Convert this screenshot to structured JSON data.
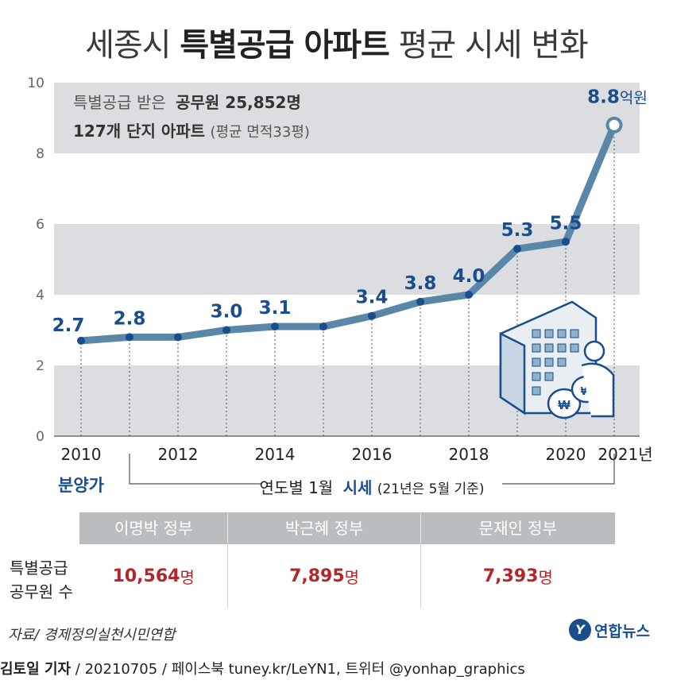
{
  "title": {
    "part1": "세종시",
    "part2": "특별공급 아파트",
    "part3": "평균 시세 변화"
  },
  "note": {
    "line1_pre": "특별공급 받은",
    "line1_bold": "공무원 25,852명",
    "line2_bold": "127개 단지 아파트",
    "line2_rest": "(평균 면적33평)"
  },
  "chart_data": {
    "type": "line",
    "title": "세종시 특별공급 아파트 평균 시세 변화",
    "xlabel": "",
    "ylabel": "",
    "ylim": [
      0,
      10
    ],
    "y_ticks": [
      0,
      2,
      4,
      6,
      8,
      10
    ],
    "x_tick_labels": [
      "2010",
      "2012",
      "2014",
      "2016",
      "2018",
      "2020",
      "2021년"
    ],
    "x": [
      "2010",
      "2011",
      "2012",
      "2013",
      "2014",
      "2015",
      "2016",
      "2017",
      "2018",
      "2019",
      "2020",
      "2021"
    ],
    "series": [
      {
        "values": [
          2.7,
          2.8,
          2.8,
          3.0,
          3.1,
          3.1,
          3.4,
          3.8,
          4.0,
          5.3,
          5.5,
          8.8
        ]
      }
    ],
    "labeled_points": [
      "2.7",
      "2.8",
      "3.0",
      "3.1",
      "3.4",
      "3.8",
      "4.0",
      "5.3",
      "5.5",
      "8.8"
    ],
    "last_label_unit": "억원",
    "grid": "horizontal bands",
    "colors": {
      "line": "#5a86a8",
      "label": "#1a4d8c",
      "band": "#dcdde0"
    }
  },
  "annotations": {
    "presale_label": "분양가",
    "bracket_text_pre": "연도별 1월",
    "bracket_text_bold": "시세",
    "bracket_text_post": "(21년은 5월 기준)"
  },
  "governments": [
    {
      "name": "이명박 정부",
      "count": "10,564",
      "unit": "명"
    },
    {
      "name": "박근혜 정부",
      "count": "7,895",
      "unit": "명"
    },
    {
      "name": "문재인 정부",
      "count": "7,393",
      "unit": "명"
    }
  ],
  "row_label": {
    "line1": "특별공급",
    "line2": "공무원 수"
  },
  "source": "자료/ 경제정의실천시민연합",
  "logo": {
    "mark": "Y",
    "name": "연합뉴스"
  },
  "credit": {
    "reporter": "김토일 기자",
    "rest": " / 20210705 / 페이스북 tuney.kr/LeYN1, 트위터 @yonhap_graphics"
  }
}
